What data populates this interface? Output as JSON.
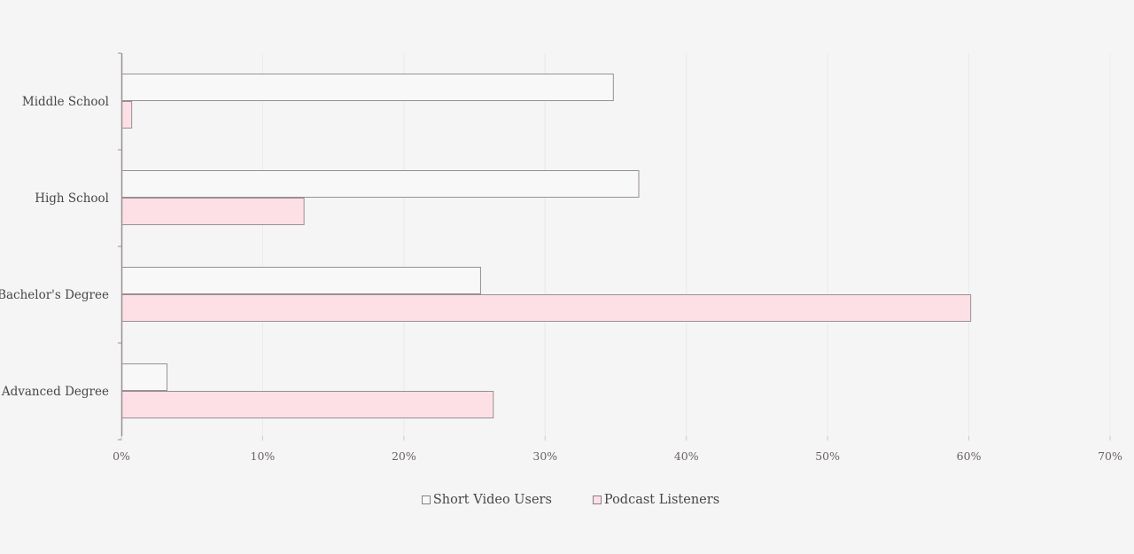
{
  "chart_data": {
    "type": "bar",
    "orientation": "horizontal",
    "categories": [
      "Middle School",
      "High School",
      "Bachelor's Degree",
      "Advanced Degree"
    ],
    "series": [
      {
        "name": "Short Video Users",
        "values": [
          34.8,
          36.6,
          25.4,
          3.2
        ],
        "color": "#f8f8f8"
      },
      {
        "name": "Podcast Listeners",
        "values": [
          0.7,
          12.9,
          60.1,
          26.3
        ],
        "color": "#fde0e6"
      }
    ],
    "xlim": [
      0,
      70
    ],
    "xticks": [
      "0%",
      "10%",
      "20%",
      "30%",
      "40%",
      "50%",
      "60%",
      "70%"
    ],
    "grid": true,
    "legend": "bottom-center",
    "bar_stroke": "#9a8f92",
    "grid_color": "#eaeaea",
    "axis_color": "#9a8f92"
  }
}
